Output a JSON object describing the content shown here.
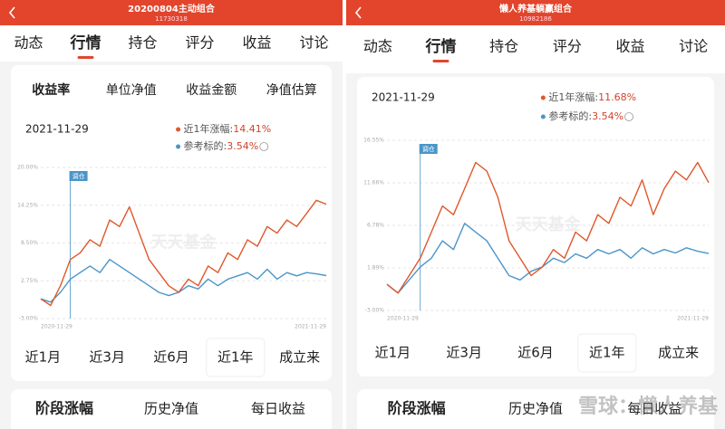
{
  "panels": [
    {
      "title": "20200804主动组合",
      "code": "11730318",
      "tabs": [
        "动态",
        "行情",
        "持仓",
        "评分",
        "收益",
        "讨论"
      ],
      "active_tab": 1,
      "subtabs": [
        "收益率",
        "单位净值",
        "收益金额",
        "净值估算"
      ],
      "active_subtab": 0,
      "date": "2021-11-29",
      "legend": [
        {
          "label": "近1年涨幅:",
          "value": "14.41%"
        },
        {
          "label": "参考标的:",
          "value": "3.54%"
        }
      ],
      "periods": [
        "近1月",
        "近3月",
        "近6月",
        "近1年",
        "成立来"
      ],
      "active_period": 3,
      "bottom_tabs": [
        "阶段涨幅",
        "历史净值",
        "每日收益"
      ],
      "active_bottom": 0
    },
    {
      "title": "懒人养基躺赢组合",
      "code": "10982186",
      "tabs": [
        "动态",
        "行情",
        "持仓",
        "评分",
        "收益",
        "讨论"
      ],
      "active_tab": 1,
      "date": "2021-11-29",
      "legend": [
        {
          "label": "近1年涨幅:",
          "value": "11.68%"
        },
        {
          "label": "参考标的:",
          "value": "3.54%"
        }
      ],
      "periods": [
        "近1月",
        "近3月",
        "近6月",
        "近1年",
        "成立来"
      ],
      "active_period": 3,
      "bottom_tabs": [
        "阶段涨幅",
        "历史净值",
        "每日收益"
      ],
      "active_bottom": 0
    }
  ],
  "watermark": "雪球：懒人养基",
  "chart_data": [
    {
      "type": "line",
      "annotation": "调仓",
      "watermark": "天天基金",
      "categories": [
        "2020-11-29",
        null,
        null,
        null,
        null,
        null,
        null,
        null,
        null,
        null,
        null,
        null,
        null,
        null,
        null,
        null,
        null,
        null,
        null,
        null,
        null,
        null,
        null,
        null,
        null,
        null,
        null,
        null,
        null,
        "2021-11-29"
      ],
      "series": [
        {
          "color": "#e0572b",
          "values": [
            0,
            -1,
            2,
            6,
            7,
            9,
            8,
            12,
            11,
            14,
            10,
            6,
            4,
            2,
            1,
            3,
            2,
            5,
            4,
            7,
            6,
            9,
            8,
            11,
            10,
            12,
            11,
            13,
            15,
            14.41
          ]
        },
        {
          "color": "#4a95c8",
          "values": [
            0,
            -0.5,
            1,
            3,
            4,
            5,
            4,
            6,
            5,
            4,
            3,
            2,
            1,
            0.5,
            1,
            2,
            1.5,
            3,
            2,
            3,
            3.5,
            4,
            3,
            4.5,
            3,
            4,
            3.5,
            4,
            3.8,
            3.54
          ]
        }
      ],
      "ylim": [
        -3,
        20
      ],
      "yticks": [
        {
          "value": -3,
          "label": "-3.00%"
        },
        {
          "value": 2.75,
          "label": "2.75%"
        },
        {
          "value": 8.5,
          "label": "8.50%"
        },
        {
          "value": 14.25,
          "label": "14.25%"
        },
        {
          "value": 20,
          "label": "20.00%"
        }
      ],
      "grid": true
    },
    {
      "type": "line",
      "annotation": "调仓",
      "watermark": "天天基金",
      "categories": [
        "2020-11-29",
        null,
        null,
        null,
        null,
        null,
        null,
        null,
        null,
        null,
        null,
        null,
        null,
        null,
        null,
        null,
        null,
        null,
        null,
        null,
        null,
        null,
        null,
        null,
        null,
        null,
        null,
        null,
        null,
        "2021-11-29"
      ],
      "series": [
        {
          "color": "#e0572b",
          "values": [
            0,
            -1,
            1,
            3,
            6,
            9,
            8,
            11,
            14,
            13,
            10,
            5,
            3,
            1,
            2,
            4,
            3,
            6,
            5,
            8,
            7,
            10,
            9,
            12,
            8,
            11,
            13,
            12,
            14,
            11.68
          ]
        },
        {
          "color": "#4a95c8",
          "values": [
            0,
            -1,
            0.5,
            2,
            3,
            5,
            4,
            7,
            6,
            5,
            3,
            1,
            0.5,
            1.5,
            2,
            3,
            2.5,
            3.5,
            3,
            4,
            3.5,
            4,
            3,
            4.2,
            3.5,
            4,
            3.6,
            4.2,
            3.8,
            3.54
          ]
        }
      ],
      "ylim": [
        -3,
        16.55
      ],
      "yticks": [
        {
          "value": -3,
          "label": "-3.00%"
        },
        {
          "value": 1.89,
          "label": "1.89%"
        },
        {
          "value": 6.78,
          "label": "6.78%"
        },
        {
          "value": 11.66,
          "label": "11.66%"
        },
        {
          "value": 16.55,
          "label": "16.55%"
        }
      ],
      "grid": true
    }
  ]
}
